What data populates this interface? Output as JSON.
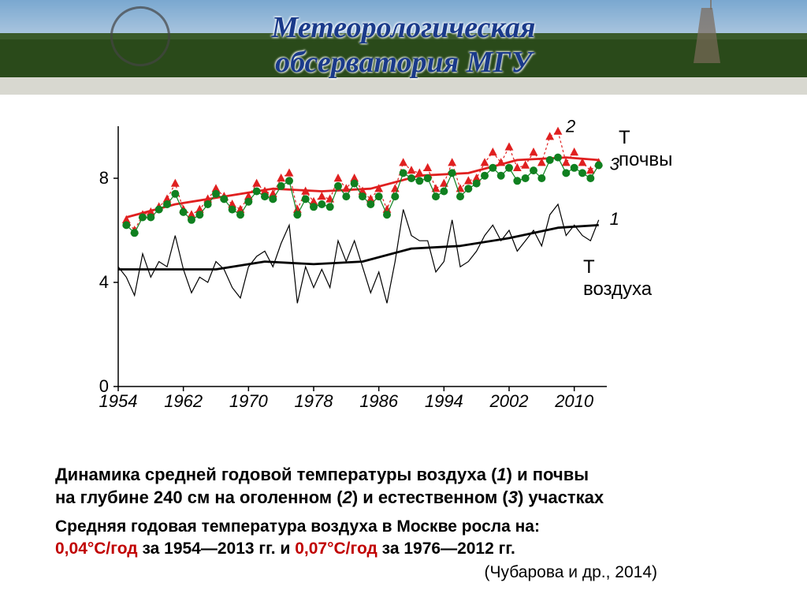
{
  "banner": {
    "line1": "Метеорологическая",
    "line2": "обсерватория МГУ",
    "title_color": "#1a3a8a",
    "sky_color": "#8ab8e0",
    "tree_color": "#2a4a1a"
  },
  "chart": {
    "type": "line",
    "x_domain": [
      1954,
      2014
    ],
    "y_domain": [
      0,
      10
    ],
    "y_ticks": [
      0,
      4,
      8
    ],
    "x_ticks": [
      1954,
      1962,
      1970,
      1978,
      1986,
      1994,
      2002,
      2010
    ],
    "background_color": "#ffffff",
    "axis_color": "#000000",
    "label_fontsize": 24,
    "tick_fontsize": 22,
    "series_air_raw": {
      "label": "1",
      "color": "#000000",
      "line_width": 1.2,
      "data": [
        [
          1954,
          4.6
        ],
        [
          1955,
          4.2
        ],
        [
          1956,
          3.5
        ],
        [
          1957,
          5.1
        ],
        [
          1958,
          4.2
        ],
        [
          1959,
          4.8
        ],
        [
          1960,
          4.6
        ],
        [
          1961,
          5.8
        ],
        [
          1962,
          4.5
        ],
        [
          1963,
          3.6
        ],
        [
          1964,
          4.2
        ],
        [
          1965,
          4.0
        ],
        [
          1966,
          4.8
        ],
        [
          1967,
          4.5
        ],
        [
          1968,
          3.8
        ],
        [
          1969,
          3.4
        ],
        [
          1970,
          4.6
        ],
        [
          1971,
          5.0
        ],
        [
          1972,
          5.2
        ],
        [
          1973,
          4.6
        ],
        [
          1974,
          5.5
        ],
        [
          1975,
          6.2
        ],
        [
          1976,
          3.2
        ],
        [
          1977,
          4.6
        ],
        [
          1978,
          3.8
        ],
        [
          1979,
          4.5
        ],
        [
          1980,
          3.8
        ],
        [
          1981,
          5.6
        ],
        [
          1982,
          4.8
        ],
        [
          1983,
          5.6
        ],
        [
          1984,
          4.6
        ],
        [
          1985,
          3.6
        ],
        [
          1986,
          4.4
        ],
        [
          1987,
          3.2
        ],
        [
          1988,
          4.8
        ],
        [
          1989,
          6.8
        ],
        [
          1990,
          5.8
        ],
        [
          1991,
          5.6
        ],
        [
          1992,
          5.6
        ],
        [
          1993,
          4.4
        ],
        [
          1994,
          4.8
        ],
        [
          1995,
          6.4
        ],
        [
          1996,
          4.6
        ],
        [
          1997,
          4.8
        ],
        [
          1998,
          5.2
        ],
        [
          1999,
          5.8
        ],
        [
          2000,
          6.2
        ],
        [
          2001,
          5.6
        ],
        [
          2002,
          6.0
        ],
        [
          2003,
          5.2
        ],
        [
          2004,
          5.6
        ],
        [
          2005,
          6.0
        ],
        [
          2006,
          5.4
        ],
        [
          2007,
          6.6
        ],
        [
          2008,
          7.0
        ],
        [
          2009,
          5.8
        ],
        [
          2010,
          6.2
        ],
        [
          2011,
          5.8
        ],
        [
          2012,
          5.6
        ],
        [
          2013,
          6.4
        ]
      ]
    },
    "series_air_smooth": {
      "color": "#000000",
      "line_width": 2.8,
      "data": [
        [
          1954,
          4.5
        ],
        [
          1960,
          4.5
        ],
        [
          1966,
          4.5
        ],
        [
          1972,
          4.8
        ],
        [
          1978,
          4.7
        ],
        [
          1984,
          4.8
        ],
        [
          1990,
          5.3
        ],
        [
          1996,
          5.4
        ],
        [
          2002,
          5.7
        ],
        [
          2008,
          6.1
        ],
        [
          2013,
          6.2
        ]
      ]
    },
    "series_soil_bare_raw": {
      "label": "2",
      "color": "#e02020",
      "marker": "triangle",
      "marker_size": 6,
      "line_dash": "3,3",
      "line_width": 1.2,
      "data": [
        [
          1955,
          6.4
        ],
        [
          1956,
          6.0
        ],
        [
          1957,
          6.6
        ],
        [
          1958,
          6.7
        ],
        [
          1959,
          6.9
        ],
        [
          1960,
          7.2
        ],
        [
          1961,
          7.8
        ],
        [
          1962,
          6.8
        ],
        [
          1963,
          6.6
        ],
        [
          1964,
          6.8
        ],
        [
          1965,
          7.2
        ],
        [
          1966,
          7.6
        ],
        [
          1967,
          7.3
        ],
        [
          1968,
          7.0
        ],
        [
          1969,
          6.8
        ],
        [
          1970,
          7.3
        ],
        [
          1971,
          7.8
        ],
        [
          1972,
          7.5
        ],
        [
          1973,
          7.4
        ],
        [
          1974,
          8.0
        ],
        [
          1975,
          8.2
        ],
        [
          1976,
          6.8
        ],
        [
          1977,
          7.5
        ],
        [
          1978,
          7.1
        ],
        [
          1979,
          7.3
        ],
        [
          1980,
          7.2
        ],
        [
          1981,
          8.0
        ],
        [
          1982,
          7.6
        ],
        [
          1983,
          8.0
        ],
        [
          1984,
          7.5
        ],
        [
          1985,
          7.2
        ],
        [
          1986,
          7.6
        ],
        [
          1987,
          6.8
        ],
        [
          1988,
          7.6
        ],
        [
          1989,
          8.6
        ],
        [
          1990,
          8.3
        ],
        [
          1991,
          8.2
        ],
        [
          1992,
          8.4
        ],
        [
          1993,
          7.6
        ],
        [
          1994,
          7.8
        ],
        [
          1995,
          8.6
        ],
        [
          1996,
          7.6
        ],
        [
          1997,
          7.9
        ],
        [
          1998,
          8.0
        ],
        [
          1999,
          8.6
        ],
        [
          2000,
          9.0
        ],
        [
          2001,
          8.6
        ],
        [
          2002,
          9.2
        ],
        [
          2003,
          8.4
        ],
        [
          2004,
          8.5
        ],
        [
          2005,
          9.0
        ],
        [
          2006,
          8.6
        ],
        [
          2007,
          9.6
        ],
        [
          2008,
          9.8
        ],
        [
          2009,
          8.6
        ],
        [
          2010,
          9.0
        ],
        [
          2011,
          8.6
        ],
        [
          2012,
          8.3
        ],
        [
          2013,
          8.6
        ]
      ]
    },
    "series_soil_bare_smooth": {
      "color": "#e02020",
      "line_width": 2.8,
      "data": [
        [
          1955,
          6.5
        ],
        [
          1961,
          7.0
        ],
        [
          1967,
          7.3
        ],
        [
          1973,
          7.6
        ],
        [
          1979,
          7.5
        ],
        [
          1985,
          7.6
        ],
        [
          1991,
          8.1
        ],
        [
          1997,
          8.2
        ],
        [
          2003,
          8.7
        ],
        [
          2009,
          8.8
        ],
        [
          2013,
          8.7
        ]
      ]
    },
    "series_soil_natural_raw": {
      "label": "3",
      "color": "#108020",
      "marker": "circle",
      "marker_size": 5,
      "line_width": 1.2,
      "data": [
        [
          1955,
          6.2
        ],
        [
          1956,
          5.9
        ],
        [
          1957,
          6.5
        ],
        [
          1958,
          6.5
        ],
        [
          1959,
          6.8
        ],
        [
          1960,
          7.0
        ],
        [
          1961,
          7.4
        ],
        [
          1962,
          6.7
        ],
        [
          1963,
          6.4
        ],
        [
          1964,
          6.6
        ],
        [
          1965,
          7.0
        ],
        [
          1966,
          7.4
        ],
        [
          1967,
          7.2
        ],
        [
          1968,
          6.8
        ],
        [
          1969,
          6.6
        ],
        [
          1970,
          7.1
        ],
        [
          1971,
          7.5
        ],
        [
          1972,
          7.3
        ],
        [
          1973,
          7.2
        ],
        [
          1974,
          7.7
        ],
        [
          1975,
          7.9
        ],
        [
          1976,
          6.6
        ],
        [
          1977,
          7.2
        ],
        [
          1978,
          6.9
        ],
        [
          1979,
          7.0
        ],
        [
          1980,
          6.9
        ],
        [
          1981,
          7.7
        ],
        [
          1982,
          7.3
        ],
        [
          1983,
          7.8
        ],
        [
          1984,
          7.3
        ],
        [
          1985,
          7.0
        ],
        [
          1986,
          7.3
        ],
        [
          1987,
          6.6
        ],
        [
          1988,
          7.3
        ],
        [
          1989,
          8.2
        ],
        [
          1990,
          8.0
        ],
        [
          1991,
          7.9
        ],
        [
          1992,
          8.0
        ],
        [
          1993,
          7.3
        ],
        [
          1994,
          7.5
        ],
        [
          1995,
          8.2
        ],
        [
          1996,
          7.3
        ],
        [
          1997,
          7.6
        ],
        [
          1998,
          7.8
        ],
        [
          1999,
          8.1
        ],
        [
          2000,
          8.4
        ],
        [
          2001,
          8.1
        ],
        [
          2002,
          8.4
        ],
        [
          2003,
          7.9
        ],
        [
          2004,
          8.0
        ],
        [
          2005,
          8.3
        ],
        [
          2006,
          8.0
        ],
        [
          2007,
          8.7
        ],
        [
          2008,
          8.8
        ],
        [
          2009,
          8.2
        ],
        [
          2010,
          8.4
        ],
        [
          2011,
          8.2
        ],
        [
          2012,
          8.0
        ],
        [
          2013,
          8.5
        ]
      ]
    },
    "labels": {
      "soil": "Т почвы",
      "air": "Т воздуха"
    }
  },
  "caption": {
    "line1_a": "Динамика средней годовой температуры воздуха (",
    "line1_b": ") и почвы",
    "line2": "на глубине 240 см на оголенном (",
    "line2_b": ") и естественном (",
    "line2_c": ") участках",
    "num1": "1",
    "num2": "2",
    "num3": "3"
  },
  "subcaption": {
    "line1": "Средняя годовая температура воздуха в Москве росла на:",
    "rate1": "0,04°С/год",
    "period1": " за 1954—2013 гг. и ",
    "rate2": "0,07°С/год",
    "period2": " за 1976—2012 гг.",
    "citation": "(Чубарова и др., 2014)"
  }
}
